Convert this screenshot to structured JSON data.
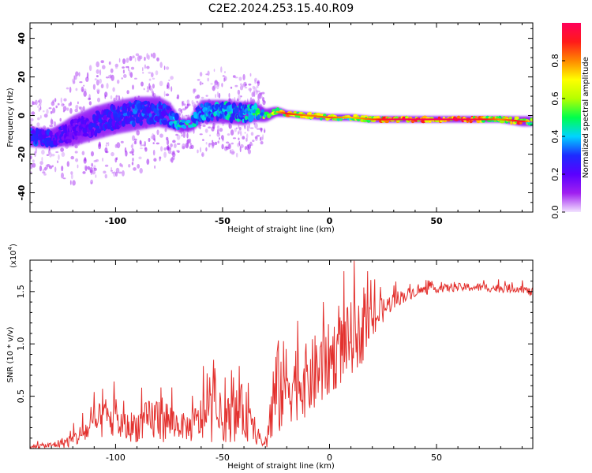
{
  "title": "C2E2.2024.253.15.40.R09",
  "colors": {
    "trace": "#e3312e",
    "frame": "#000000",
    "background": "#ffffff"
  },
  "chart_data": [
    {
      "type": "heatmap",
      "xlabel": "Height of straight line (km)",
      "ylabel": "Frequency (Hz)",
      "xlim": [
        -140,
        95
      ],
      "ylim": [
        -50,
        48
      ],
      "xticks": [
        -100,
        -50,
        0,
        50
      ],
      "yticks": [
        -40,
        -20,
        0,
        20,
        40
      ],
      "colorbar": {
        "label": "Normalized spectral amplitude",
        "range": [
          0,
          1
        ],
        "ticks": [
          0.0,
          0.2,
          0.4,
          0.6,
          0.8
        ],
        "colormap": [
          "#f2e3ff",
          "#a020f0",
          "#5a00ff",
          "#1d2bff",
          "#00d4ff",
          "#00ff4c",
          "#b5ff00",
          "#ffff00",
          "#ff8800",
          "#ff1a1a",
          "#ff005a"
        ]
      },
      "ridge": {
        "x": [
          -140,
          -130,
          -125,
          -120,
          -110,
          -100,
          -90,
          -80,
          -75,
          -70,
          -65,
          -60,
          -50,
          -40,
          -35,
          -30,
          -25,
          -20,
          -10,
          0,
          10,
          20,
          30,
          40,
          50,
          60,
          70,
          80,
          90,
          95
        ],
        "f": [
          -11,
          -12,
          -10,
          -8,
          -4,
          -1,
          1,
          2,
          0,
          -5,
          -5,
          2,
          2,
          1,
          2,
          0,
          2,
          1,
          0,
          -1,
          -1,
          -2,
          -2,
          -2,
          -2,
          -2,
          -2,
          -2,
          -3,
          -3
        ],
        "amp": [
          0.35,
          0.3,
          0.25,
          0.2,
          0.3,
          0.3,
          0.35,
          0.35,
          0.3,
          0.5,
          0.55,
          0.4,
          0.45,
          0.45,
          0.5,
          0.6,
          0.7,
          0.85,
          0.75,
          0.8,
          0.7,
          0.8,
          0.95,
          0.95,
          0.95,
          0.95,
          0.9,
          0.75,
          0.9,
          0.6
        ],
        "spread": [
          6,
          6,
          7,
          9,
          10,
          10,
          10,
          9,
          8,
          4,
          4,
          7,
          7,
          7,
          6,
          4,
          3,
          2,
          2,
          2,
          2,
          2,
          2,
          2,
          2,
          2,
          2,
          2,
          3,
          3
        ]
      }
    },
    {
      "type": "line",
      "xlabel": "Height of straight line (km)",
      "ylabel": "SNR (10 * v/v)",
      "scale_label": "(x10",
      "scale_exponent": "4",
      "xlim": [
        -140,
        95
      ],
      "ylim": [
        0,
        1.8
      ],
      "xticks": [
        -100,
        -50,
        0,
        50
      ],
      "yticks": [
        0.5,
        1.0,
        1.5
      ],
      "series": [
        {
          "x": [
            -140,
            -130,
            -120,
            -110,
            -105,
            -100,
            -95,
            -90,
            -85,
            -80,
            -75,
            -70,
            -65,
            -60,
            -55,
            -50,
            -45,
            -40,
            -35,
            -30,
            -27,
            -25,
            -22,
            -20,
            -15,
            -10,
            -5,
            0,
            5,
            10,
            15,
            20,
            25,
            30,
            40,
            50,
            60,
            70,
            80,
            90,
            95
          ],
          "y": [
            0.02,
            0.03,
            0.08,
            0.22,
            0.3,
            0.25,
            0.2,
            0.22,
            0.26,
            0.3,
            0.26,
            0.22,
            0.2,
            0.28,
            0.32,
            0.26,
            0.3,
            0.36,
            0.14,
            0.03,
            0.35,
            0.55,
            0.6,
            0.62,
            0.65,
            0.65,
            0.75,
            0.85,
            0.95,
            1.05,
            1.1,
            1.22,
            1.32,
            1.42,
            1.5,
            1.53,
            1.54,
            1.54,
            1.53,
            1.53,
            1.48
          ],
          "band": [
            0.02,
            0.03,
            0.07,
            0.15,
            0.2,
            0.18,
            0.14,
            0.16,
            0.2,
            0.24,
            0.2,
            0.12,
            0.14,
            0.22,
            0.26,
            0.2,
            0.24,
            0.28,
            0.1,
            0.02,
            0.4,
            0.5,
            0.45,
            0.4,
            0.38,
            0.35,
            0.4,
            0.35,
            0.35,
            0.35,
            0.3,
            0.2,
            0.12,
            0.08,
            0.05,
            0.04,
            0.04,
            0.04,
            0.04,
            0.04,
            0.04
          ]
        }
      ]
    }
  ]
}
